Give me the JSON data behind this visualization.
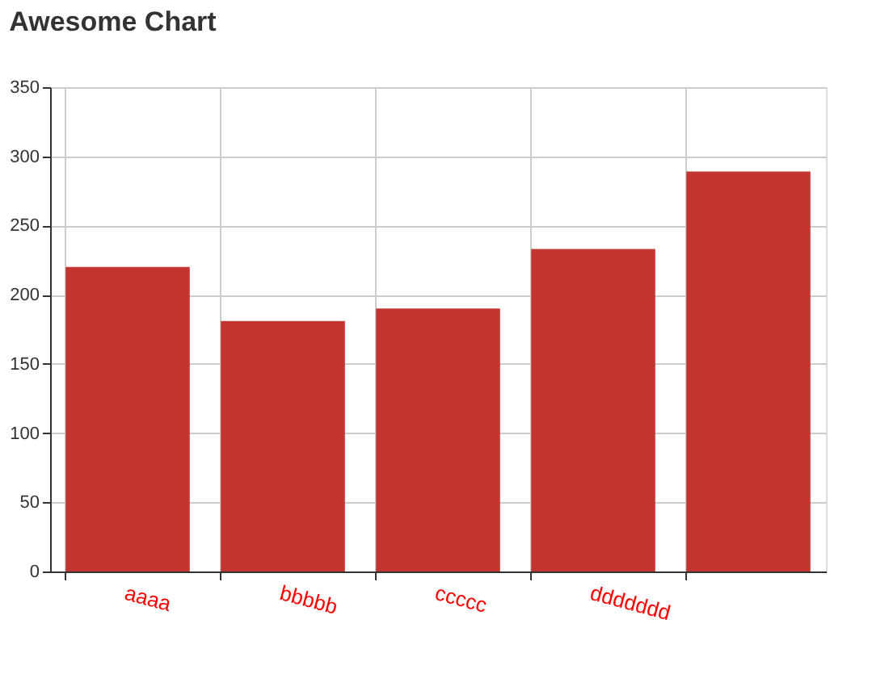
{
  "chart_data": {
    "type": "bar",
    "title": "Awesome Chart",
    "categories": [
      "aaaa",
      "bbbbb",
      "ccccc",
      "ddddddd",
      null
    ],
    "values": [
      220,
      181,
      190,
      233,
      289
    ],
    "color": "#c23531",
    "ylim": [
      0,
      350
    ],
    "yticks": [
      0,
      50,
      100,
      150,
      200,
      250,
      300,
      350
    ],
    "grid": true
  }
}
